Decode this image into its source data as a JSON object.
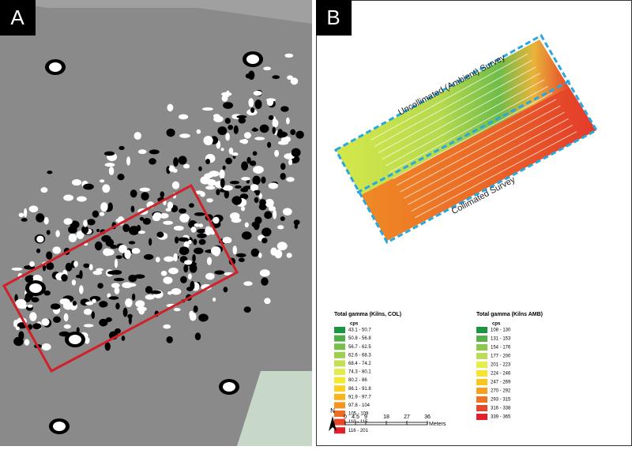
{
  "panel_a": {
    "label": "A"
  },
  "panel_b": {
    "label": "B",
    "survey_labels": [
      "Uncollimated (Ambient) Survey",
      "Collimated Survey"
    ],
    "legends": [
      {
        "title": "Total gamma (Kilns, COL)",
        "unit": "cps",
        "items": [
          {
            "label": "43.1 - 50.7",
            "color": "#1a9641"
          },
          {
            "label": "50.8 - 56.8",
            "color": "#4fae45"
          },
          {
            "label": "56.7 - 62.5",
            "color": "#76bf49"
          },
          {
            "label": "62.6 - 68.3",
            "color": "#9ccf4e"
          },
          {
            "label": "68.4 - 74.2",
            "color": "#c3e053"
          },
          {
            "label": "74.3 - 80.1",
            "color": "#e2ec4a"
          },
          {
            "label": "80.2 - 86",
            "color": "#f5e82f"
          },
          {
            "label": "86.1 - 91.8",
            "color": "#fbd020"
          },
          {
            "label": "91.9 - 97.7",
            "color": "#fbb21c"
          },
          {
            "label": "97.8 - 104",
            "color": "#f7921d"
          },
          {
            "label": "105 - 109",
            "color": "#f06c22"
          },
          {
            "label": "110 - 115",
            "color": "#e94626"
          },
          {
            "label": "116 - 201",
            "color": "#e3202a"
          }
        ]
      },
      {
        "title": "Total gamma (Kilns AMB)",
        "unit": "cps",
        "items": [
          {
            "label": "108 - 130",
            "color": "#1a9641"
          },
          {
            "label": "131 - 153",
            "color": "#56b146"
          },
          {
            "label": "154 - 176",
            "color": "#8ac74c"
          },
          {
            "label": "177 - 200",
            "color": "#bcdd52"
          },
          {
            "label": "201 - 223",
            "color": "#e6ee48"
          },
          {
            "label": "224 - 246",
            "color": "#f9e42a"
          },
          {
            "label": "247 - 269",
            "color": "#fbc51f"
          },
          {
            "label": "270 - 292",
            "color": "#f89f1c"
          },
          {
            "label": "293 - 315",
            "color": "#f07322"
          },
          {
            "label": "316 - 338",
            "color": "#e84727"
          },
          {
            "label": "339 - 365",
            "color": "#e3202a"
          }
        ]
      }
    ],
    "north": "N",
    "scale": {
      "ticks": [
        "0",
        "4.5",
        "9",
        "18",
        "27",
        "36"
      ],
      "unit": "Meters"
    }
  }
}
